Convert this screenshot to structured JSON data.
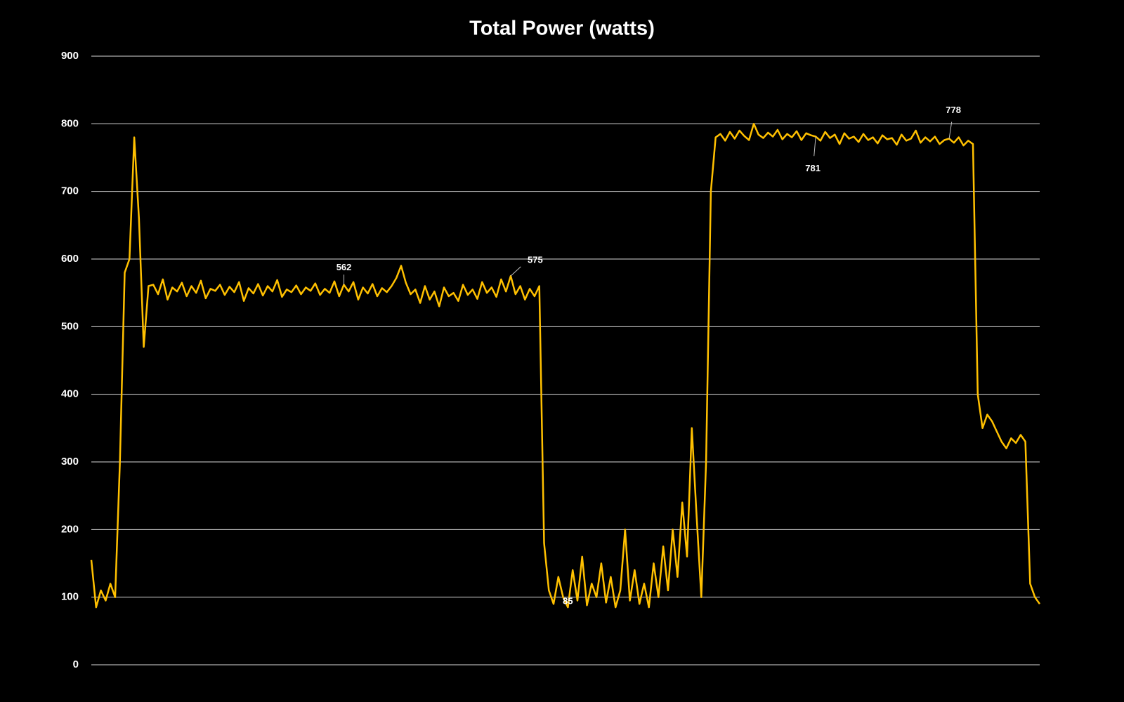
{
  "chart_data": {
    "type": "line",
    "title": "Total Power (watts)",
    "color": "#ffc000",
    "grid": true,
    "ylim": [
      0,
      900
    ],
    "yticks": [
      0,
      100,
      200,
      300,
      400,
      500,
      600,
      700,
      800,
      900
    ],
    "values": [
      155,
      85,
      110,
      95,
      120,
      100,
      300,
      580,
      600,
      780,
      660,
      470,
      560,
      562,
      548,
      570,
      540,
      558,
      552,
      565,
      545,
      560,
      550,
      568,
      542,
      556,
      553,
      562,
      547,
      559,
      551,
      566,
      538,
      557,
      549,
      563,
      546,
      560,
      552,
      569,
      544,
      555,
      551,
      561,
      548,
      558,
      553,
      564,
      547,
      556,
      550,
      567,
      545,
      562,
      552,
      566,
      540,
      558,
      549,
      563,
      545,
      557,
      551,
      560,
      572,
      590,
      565,
      548,
      555,
      535,
      560,
      540,
      552,
      530,
      558,
      545,
      550,
      538,
      562,
      547,
      555,
      541,
      566,
      550,
      558,
      544,
      570,
      552,
      575,
      548,
      560,
      540,
      556,
      545,
      560,
      180,
      110,
      90,
      130,
      100,
      85,
      140,
      95,
      160,
      88,
      120,
      100,
      150,
      92,
      130,
      85,
      110,
      200,
      95,
      140,
      90,
      120,
      85,
      150,
      100,
      175,
      110,
      200,
      130,
      240,
      160,
      350,
      220,
      100,
      300,
      700,
      780,
      785,
      775,
      788,
      778,
      790,
      782,
      776,
      800,
      784,
      779,
      787,
      781,
      791,
      777,
      785,
      780,
      789,
      776,
      786,
      783,
      781,
      775,
      788,
      779,
      784,
      770,
      786,
      778,
      781,
      773,
      785,
      776,
      780,
      771,
      783,
      777,
      779,
      769,
      784,
      775,
      778,
      790,
      772,
      780,
      774,
      781,
      770,
      776,
      778,
      772,
      780,
      768,
      775,
      770,
      400,
      350,
      370,
      360,
      345,
      330,
      320,
      335,
      328,
      340,
      330,
      120,
      100,
      90
    ],
    "data_labels": [
      {
        "index": 53,
        "value": 562
      },
      {
        "index": 88,
        "value": 575
      },
      {
        "index": 100,
        "value": 85
      },
      {
        "index": 152,
        "value": 781
      },
      {
        "index": 180,
        "value": 778
      }
    ]
  }
}
